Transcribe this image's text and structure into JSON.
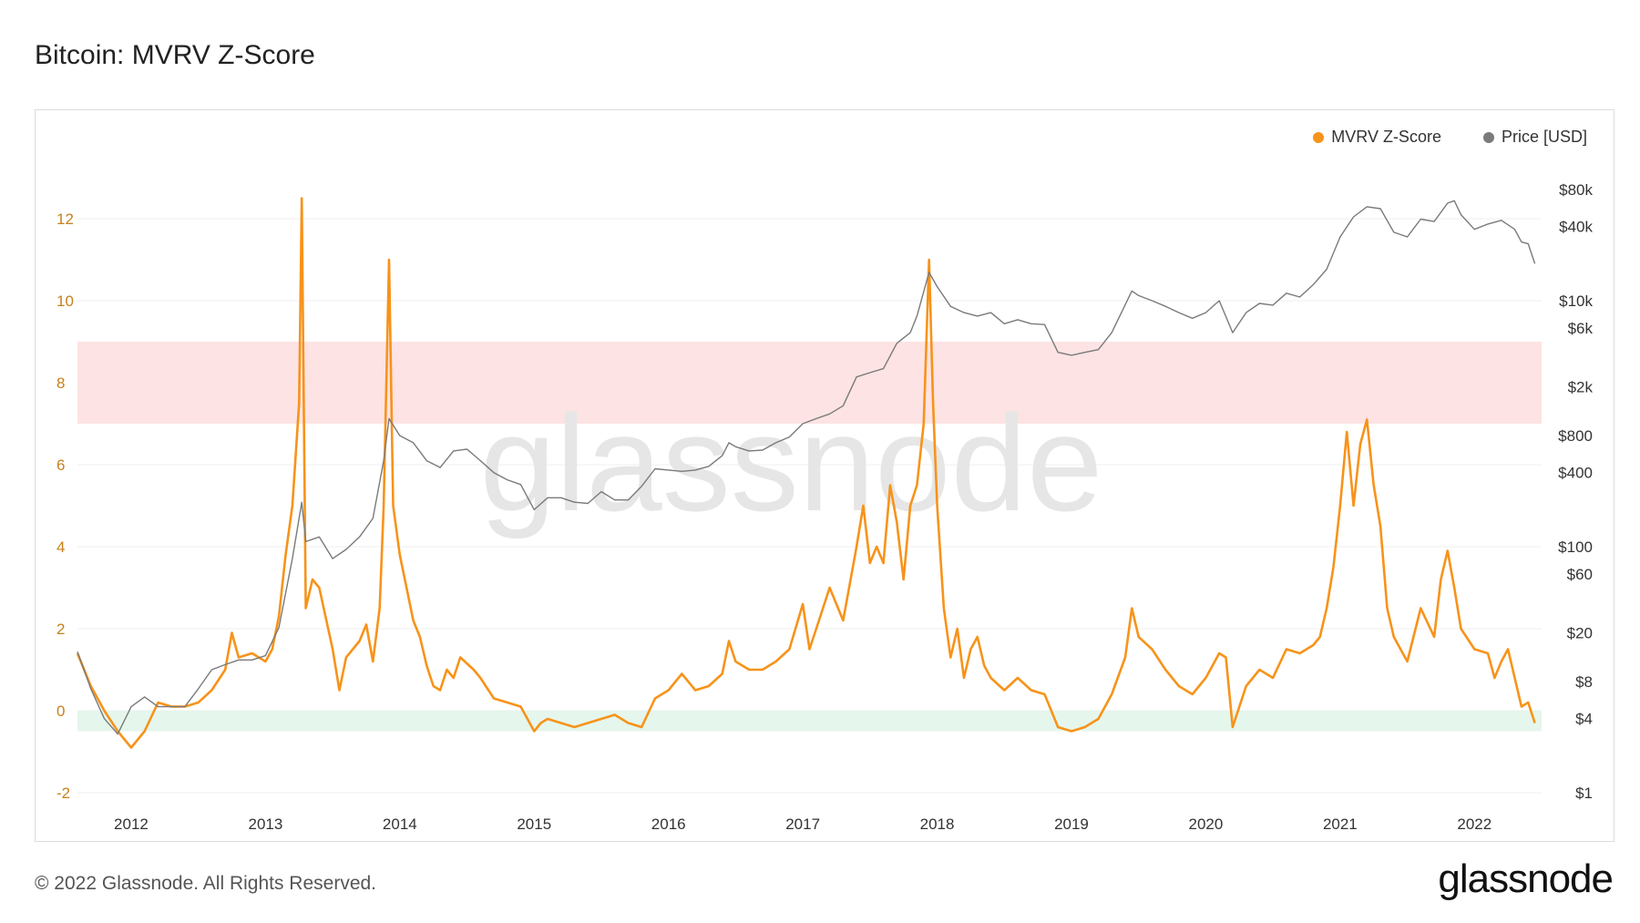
{
  "title": "Bitcoin: MVRV Z-Score",
  "footer": "© 2022 Glassnode. All Rights Reserved.",
  "brand": "glassnode",
  "watermark": "glassnode",
  "colors": {
    "zscore": "#f7931a",
    "price": "#7a7a7a",
    "red_band": "#fde3e3",
    "green_band": "#e5f6ec",
    "zscore_axis": "#c8801c"
  },
  "chart_data": {
    "type": "line",
    "title": "Bitcoin: MVRV Z-Score",
    "legend": {
      "placement": "top-right",
      "entries": [
        "MVRV Z-Score",
        "Price [USD]"
      ]
    },
    "x_range": [
      2011.6,
      2022.5
    ],
    "x_ticks": [
      "2012",
      "2013",
      "2014",
      "2015",
      "2016",
      "2017",
      "2018",
      "2019",
      "2020",
      "2021",
      "2022"
    ],
    "y_left": {
      "range": [
        -2,
        13
      ],
      "ticks": [
        "-2",
        "0",
        "2",
        "4",
        "6",
        "8",
        "10",
        "12"
      ]
    },
    "y_right": {
      "scale": "log",
      "range": [
        1,
        100000
      ],
      "ticks": [
        {
          "label": "$1",
          "value": 1
        },
        {
          "label": "$4",
          "value": 4
        },
        {
          "label": "$8",
          "value": 8
        },
        {
          "label": "$20",
          "value": 20
        },
        {
          "label": "$60",
          "value": 60
        },
        {
          "label": "$100",
          "value": 100
        },
        {
          "label": "$400",
          "value": 400
        },
        {
          "label": "$800",
          "value": 800
        },
        {
          "label": "$2k",
          "value": 2000
        },
        {
          "label": "$6k",
          "value": 6000
        },
        {
          "label": "$10k",
          "value": 10000
        },
        {
          "label": "$40k",
          "value": 40000
        },
        {
          "label": "$80k",
          "value": 80000
        }
      ]
    },
    "bands": [
      {
        "from": 7,
        "to": 9,
        "color": "red_band"
      },
      {
        "from": -0.5,
        "to": 0,
        "color": "green_band"
      }
    ],
    "grid": true,
    "series": [
      {
        "name": "MVRV Z-Score",
        "axis": "left",
        "color": "zscore",
        "points": [
          [
            2011.6,
            1.4
          ],
          [
            2011.7,
            0.6
          ],
          [
            2011.8,
            0.0
          ],
          [
            2011.9,
            -0.5
          ],
          [
            2012.0,
            -0.9
          ],
          [
            2012.1,
            -0.5
          ],
          [
            2012.2,
            0.2
          ],
          [
            2012.3,
            0.1
          ],
          [
            2012.4,
            0.1
          ],
          [
            2012.5,
            0.2
          ],
          [
            2012.6,
            0.5
          ],
          [
            2012.7,
            1.0
          ],
          [
            2012.75,
            1.9
          ],
          [
            2012.8,
            1.3
          ],
          [
            2012.9,
            1.4
          ],
          [
            2013.0,
            1.2
          ],
          [
            2013.05,
            1.5
          ],
          [
            2013.1,
            2.3
          ],
          [
            2013.15,
            3.8
          ],
          [
            2013.2,
            5.0
          ],
          [
            2013.25,
            7.5
          ],
          [
            2013.27,
            12.5
          ],
          [
            2013.3,
            2.5
          ],
          [
            2013.35,
            3.2
          ],
          [
            2013.4,
            3.0
          ],
          [
            2013.5,
            1.5
          ],
          [
            2013.55,
            0.5
          ],
          [
            2013.6,
            1.3
          ],
          [
            2013.7,
            1.7
          ],
          [
            2013.75,
            2.1
          ],
          [
            2013.8,
            1.2
          ],
          [
            2013.85,
            2.5
          ],
          [
            2013.88,
            5.0
          ],
          [
            2013.92,
            11.0
          ],
          [
            2013.95,
            5.0
          ],
          [
            2014.0,
            3.8
          ],
          [
            2014.05,
            3.0
          ],
          [
            2014.1,
            2.2
          ],
          [
            2014.15,
            1.8
          ],
          [
            2014.2,
            1.1
          ],
          [
            2014.25,
            0.6
          ],
          [
            2014.3,
            0.5
          ],
          [
            2014.35,
            1.0
          ],
          [
            2014.4,
            0.8
          ],
          [
            2014.45,
            1.3
          ],
          [
            2014.55,
            1.0
          ],
          [
            2014.6,
            0.8
          ],
          [
            2014.7,
            0.3
          ],
          [
            2014.8,
            0.2
          ],
          [
            2014.9,
            0.1
          ],
          [
            2015.0,
            -0.5
          ],
          [
            2015.05,
            -0.3
          ],
          [
            2015.1,
            -0.2
          ],
          [
            2015.2,
            -0.3
          ],
          [
            2015.3,
            -0.4
          ],
          [
            2015.4,
            -0.3
          ],
          [
            2015.5,
            -0.2
          ],
          [
            2015.6,
            -0.1
          ],
          [
            2015.7,
            -0.3
          ],
          [
            2015.8,
            -0.4
          ],
          [
            2015.9,
            0.3
          ],
          [
            2016.0,
            0.5
          ],
          [
            2016.1,
            0.9
          ],
          [
            2016.2,
            0.5
          ],
          [
            2016.3,
            0.6
          ],
          [
            2016.4,
            0.9
          ],
          [
            2016.45,
            1.7
          ],
          [
            2016.5,
            1.2
          ],
          [
            2016.6,
            1.0
          ],
          [
            2016.7,
            1.0
          ],
          [
            2016.8,
            1.2
          ],
          [
            2016.9,
            1.5
          ],
          [
            2017.0,
            2.6
          ],
          [
            2017.05,
            1.5
          ],
          [
            2017.1,
            2.0
          ],
          [
            2017.2,
            3.0
          ],
          [
            2017.3,
            2.2
          ],
          [
            2017.4,
            4.0
          ],
          [
            2017.45,
            5.0
          ],
          [
            2017.5,
            3.6
          ],
          [
            2017.55,
            4.0
          ],
          [
            2017.6,
            3.6
          ],
          [
            2017.65,
            5.5
          ],
          [
            2017.7,
            4.6
          ],
          [
            2017.75,
            3.2
          ],
          [
            2017.8,
            5.0
          ],
          [
            2017.85,
            5.5
          ],
          [
            2017.9,
            7.0
          ],
          [
            2017.94,
            11.0
          ],
          [
            2017.97,
            7.5
          ],
          [
            2018.0,
            5.0
          ],
          [
            2018.05,
            2.5
          ],
          [
            2018.1,
            1.3
          ],
          [
            2018.15,
            2.0
          ],
          [
            2018.2,
            0.8
          ],
          [
            2018.25,
            1.5
          ],
          [
            2018.3,
            1.8
          ],
          [
            2018.35,
            1.1
          ],
          [
            2018.4,
            0.8
          ],
          [
            2018.5,
            0.5
          ],
          [
            2018.6,
            0.8
          ],
          [
            2018.7,
            0.5
          ],
          [
            2018.8,
            0.4
          ],
          [
            2018.9,
            -0.4
          ],
          [
            2019.0,
            -0.5
          ],
          [
            2019.1,
            -0.4
          ],
          [
            2019.2,
            -0.2
          ],
          [
            2019.3,
            0.4
          ],
          [
            2019.4,
            1.3
          ],
          [
            2019.45,
            2.5
          ],
          [
            2019.5,
            1.8
          ],
          [
            2019.6,
            1.5
          ],
          [
            2019.7,
            1.0
          ],
          [
            2019.8,
            0.6
          ],
          [
            2019.9,
            0.4
          ],
          [
            2020.0,
            0.8
          ],
          [
            2020.1,
            1.4
          ],
          [
            2020.15,
            1.3
          ],
          [
            2020.2,
            -0.4
          ],
          [
            2020.3,
            0.6
          ],
          [
            2020.4,
            1.0
          ],
          [
            2020.5,
            0.8
          ],
          [
            2020.6,
            1.5
          ],
          [
            2020.7,
            1.4
          ],
          [
            2020.8,
            1.6
          ],
          [
            2020.85,
            1.8
          ],
          [
            2020.9,
            2.5
          ],
          [
            2020.95,
            3.5
          ],
          [
            2021.0,
            5.0
          ],
          [
            2021.05,
            6.8
          ],
          [
            2021.1,
            5.0
          ],
          [
            2021.15,
            6.5
          ],
          [
            2021.2,
            7.1
          ],
          [
            2021.25,
            5.5
          ],
          [
            2021.3,
            4.5
          ],
          [
            2021.35,
            2.5
          ],
          [
            2021.4,
            1.8
          ],
          [
            2021.5,
            1.2
          ],
          [
            2021.6,
            2.5
          ],
          [
            2021.7,
            1.8
          ],
          [
            2021.75,
            3.2
          ],
          [
            2021.8,
            3.9
          ],
          [
            2021.85,
            3.0
          ],
          [
            2021.9,
            2.0
          ],
          [
            2022.0,
            1.5
          ],
          [
            2022.1,
            1.4
          ],
          [
            2022.15,
            0.8
          ],
          [
            2022.2,
            1.2
          ],
          [
            2022.25,
            1.5
          ],
          [
            2022.3,
            0.8
          ],
          [
            2022.35,
            0.1
          ],
          [
            2022.4,
            0.2
          ],
          [
            2022.45,
            -0.3
          ]
        ]
      },
      {
        "name": "Price [USD]",
        "axis": "right",
        "color": "price",
        "points": [
          [
            2011.6,
            14
          ],
          [
            2011.7,
            7
          ],
          [
            2011.8,
            4
          ],
          [
            2011.9,
            3
          ],
          [
            2012.0,
            5
          ],
          [
            2012.1,
            6
          ],
          [
            2012.2,
            5
          ],
          [
            2012.3,
            5
          ],
          [
            2012.4,
            5
          ],
          [
            2012.5,
            7
          ],
          [
            2012.6,
            10
          ],
          [
            2012.7,
            11
          ],
          [
            2012.8,
            12
          ],
          [
            2012.9,
            12
          ],
          [
            2013.0,
            13
          ],
          [
            2013.1,
            22
          ],
          [
            2013.2,
            80
          ],
          [
            2013.27,
            230
          ],
          [
            2013.3,
            110
          ],
          [
            2013.4,
            120
          ],
          [
            2013.5,
            80
          ],
          [
            2013.6,
            95
          ],
          [
            2013.7,
            120
          ],
          [
            2013.8,
            170
          ],
          [
            2013.88,
            500
          ],
          [
            2013.92,
            1100
          ],
          [
            2014.0,
            800
          ],
          [
            2014.1,
            700
          ],
          [
            2014.2,
            500
          ],
          [
            2014.3,
            440
          ],
          [
            2014.4,
            600
          ],
          [
            2014.5,
            620
          ],
          [
            2014.6,
            500
          ],
          [
            2014.7,
            400
          ],
          [
            2014.8,
            350
          ],
          [
            2014.9,
            320
          ],
          [
            2015.0,
            200
          ],
          [
            2015.1,
            250
          ],
          [
            2015.2,
            250
          ],
          [
            2015.3,
            230
          ],
          [
            2015.4,
            225
          ],
          [
            2015.5,
            280
          ],
          [
            2015.6,
            240
          ],
          [
            2015.7,
            240
          ],
          [
            2015.8,
            310
          ],
          [
            2015.9,
            430
          ],
          [
            2016.0,
            420
          ],
          [
            2016.1,
            410
          ],
          [
            2016.2,
            420
          ],
          [
            2016.3,
            450
          ],
          [
            2016.4,
            550
          ],
          [
            2016.45,
            700
          ],
          [
            2016.5,
            650
          ],
          [
            2016.6,
            600
          ],
          [
            2016.7,
            610
          ],
          [
            2016.8,
            700
          ],
          [
            2016.9,
            780
          ],
          [
            2017.0,
            1000
          ],
          [
            2017.1,
            1100
          ],
          [
            2017.2,
            1200
          ],
          [
            2017.3,
            1400
          ],
          [
            2017.4,
            2400
          ],
          [
            2017.5,
            2600
          ],
          [
            2017.6,
            2800
          ],
          [
            2017.7,
            4500
          ],
          [
            2017.8,
            5500
          ],
          [
            2017.85,
            7500
          ],
          [
            2017.94,
            17000
          ],
          [
            2018.0,
            13000
          ],
          [
            2018.1,
            9000
          ],
          [
            2018.2,
            8000
          ],
          [
            2018.3,
            7500
          ],
          [
            2018.4,
            8000
          ],
          [
            2018.5,
            6500
          ],
          [
            2018.6,
            7000
          ],
          [
            2018.7,
            6500
          ],
          [
            2018.8,
            6400
          ],
          [
            2018.9,
            3800
          ],
          [
            2019.0,
            3600
          ],
          [
            2019.1,
            3800
          ],
          [
            2019.2,
            4000
          ],
          [
            2019.3,
            5500
          ],
          [
            2019.45,
            12000
          ],
          [
            2019.5,
            11000
          ],
          [
            2019.6,
            10000
          ],
          [
            2019.7,
            9000
          ],
          [
            2019.8,
            8000
          ],
          [
            2019.9,
            7200
          ],
          [
            2020.0,
            8000
          ],
          [
            2020.1,
            10000
          ],
          [
            2020.2,
            5500
          ],
          [
            2020.3,
            8000
          ],
          [
            2020.4,
            9500
          ],
          [
            2020.5,
            9200
          ],
          [
            2020.6,
            11500
          ],
          [
            2020.7,
            10700
          ],
          [
            2020.8,
            13500
          ],
          [
            2020.9,
            18000
          ],
          [
            2021.0,
            33000
          ],
          [
            2021.1,
            48000
          ],
          [
            2021.2,
            58000
          ],
          [
            2021.3,
            56000
          ],
          [
            2021.4,
            36000
          ],
          [
            2021.5,
            33000
          ],
          [
            2021.6,
            46000
          ],
          [
            2021.7,
            44000
          ],
          [
            2021.8,
            62000
          ],
          [
            2021.85,
            65000
          ],
          [
            2021.9,
            50000
          ],
          [
            2022.0,
            38000
          ],
          [
            2022.1,
            42000
          ],
          [
            2022.2,
            45000
          ],
          [
            2022.3,
            38000
          ],
          [
            2022.35,
            30000
          ],
          [
            2022.4,
            29000
          ],
          [
            2022.45,
            20000
          ]
        ]
      }
    ]
  }
}
